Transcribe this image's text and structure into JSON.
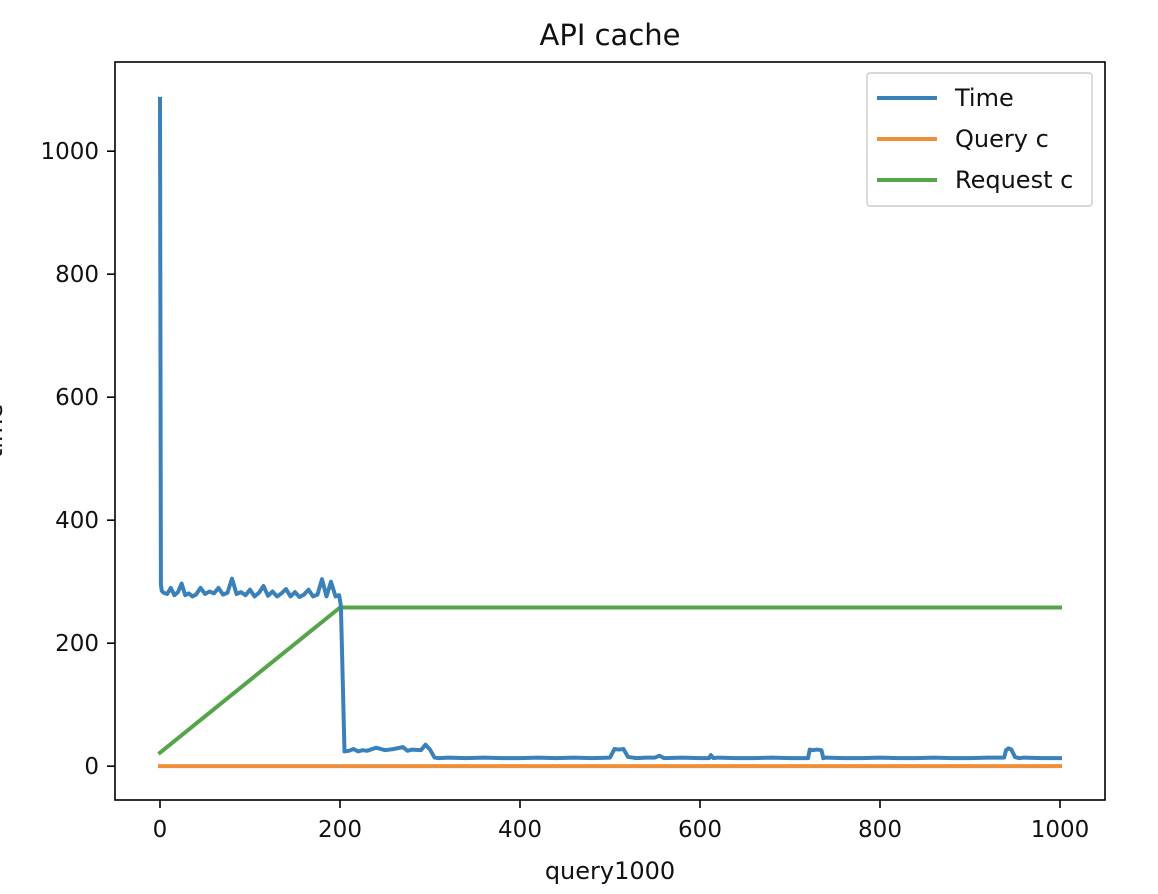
{
  "chart_data": {
    "type": "line",
    "title": "API cache",
    "xlabel": "query1000",
    "ylabel": "time",
    "xlim": [
      -50,
      1050
    ],
    "ylim": [
      -55,
      1145
    ],
    "xticks": [
      0,
      200,
      400,
      600,
      800,
      1000
    ],
    "yticks": [
      0,
      200,
      400,
      600,
      800,
      1000
    ],
    "grid": false,
    "legend_position": "top-right",
    "series": [
      {
        "name": "Time",
        "color": "#3a81ba",
        "x": [
          0,
          1,
          2,
          4,
          8,
          12,
          16,
          20,
          24,
          28,
          32,
          36,
          40,
          45,
          50,
          55,
          60,
          65,
          70,
          75,
          80,
          85,
          90,
          95,
          100,
          105,
          110,
          115,
          120,
          125,
          130,
          135,
          140,
          145,
          150,
          155,
          160,
          165,
          170,
          175,
          180,
          185,
          190,
          195,
          199,
          200,
          201,
          205,
          210,
          215,
          220,
          225,
          230,
          240,
          250,
          260,
          270,
          275,
          280,
          290,
          295,
          300,
          305,
          310,
          320,
          340,
          360,
          380,
          400,
          420,
          440,
          460,
          480,
          500,
          505,
          510,
          515,
          520,
          525,
          530,
          540,
          550,
          555,
          560,
          580,
          600,
          610,
          612,
          615,
          620,
          640,
          660,
          680,
          700,
          720,
          722,
          725,
          730,
          735,
          737,
          740,
          760,
          780,
          800,
          820,
          840,
          860,
          880,
          900,
          920,
          938,
          940,
          943,
          946,
          950,
          952,
          955,
          960,
          980,
          1000
        ],
        "y": [
          1085,
          295,
          285,
          282,
          280,
          290,
          278,
          283,
          297,
          278,
          281,
          276,
          279,
          290,
          280,
          284,
          281,
          290,
          279,
          282,
          305,
          280,
          283,
          278,
          287,
          276,
          282,
          293,
          277,
          284,
          276,
          281,
          288,
          276,
          283,
          275,
          279,
          287,
          276,
          279,
          304,
          276,
          300,
          276,
          278,
          270,
          260,
          24,
          25,
          28,
          24,
          26,
          25,
          30,
          26,
          28,
          31,
          25,
          27,
          26,
          35,
          27,
          14,
          13,
          14,
          13,
          14,
          13,
          13,
          14,
          13,
          14,
          13,
          14,
          28,
          27,
          28,
          15,
          14,
          13,
          14,
          14,
          17,
          13,
          14,
          13,
          13,
          18,
          13,
          14,
          13,
          13,
          14,
          13,
          13,
          27,
          26,
          27,
          26,
          13,
          14,
          13,
          13,
          14,
          13,
          13,
          14,
          13,
          13,
          14,
          14,
          26,
          29,
          27,
          15,
          14,
          13,
          14,
          13,
          13
        ]
      },
      {
        "name": "Query c",
        "color": "#ee8f3a",
        "x": [
          0,
          1000
        ],
        "y": [
          0,
          0
        ]
      },
      {
        "name": "Request c",
        "color": "#55a44a",
        "x": [
          0,
          200,
          1000
        ],
        "y": [
          22,
          258,
          258
        ]
      }
    ]
  }
}
